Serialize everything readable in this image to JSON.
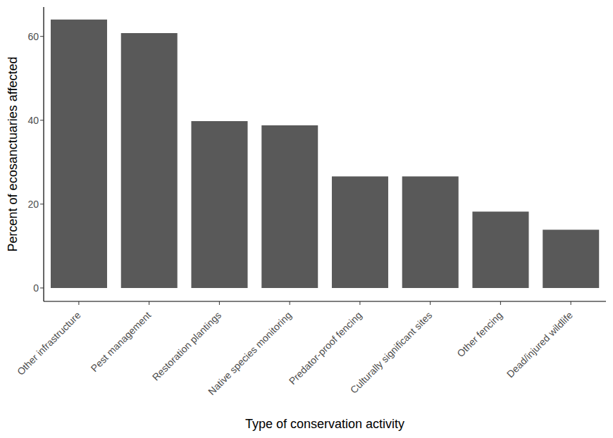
{
  "chart_data": {
    "type": "bar",
    "x_label": "Type of conservation activity",
    "y_label": "Percent of ecosanctuaries affected",
    "categories": [
      "Other infrastructure",
      "Pest management",
      "Restoration plantings",
      "Native species monitoring",
      "Predator-proof fencing",
      "Culturally significant sites",
      "Other fencing",
      "Dead/injured wildlife"
    ],
    "values": [
      64.0,
      60.8,
      39.8,
      38.8,
      26.6,
      26.6,
      18.2,
      13.9
    ],
    "color": "#595959",
    "ylim": [
      -3.2,
      67
    ],
    "yticks": [
      0,
      20,
      40,
      60
    ],
    "grid": false
  }
}
